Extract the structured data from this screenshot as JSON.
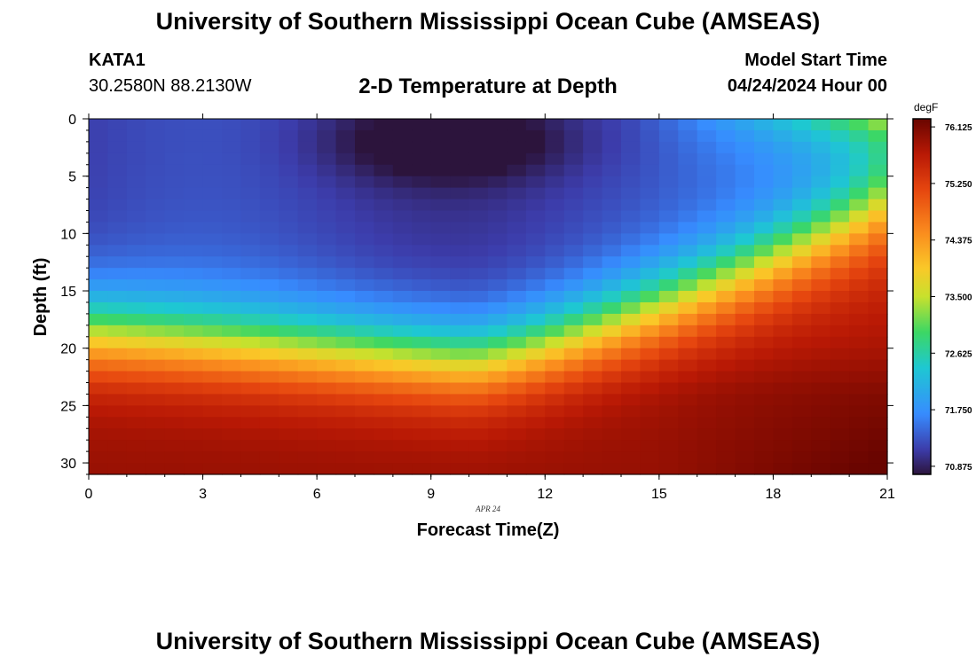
{
  "header": {
    "title": "University of Southern Mississippi Ocean Cube (AMSEAS)",
    "station": "KATA1",
    "coordinates": "30.2580N  88.2130W",
    "subtitle": "2-D Temperature at Depth",
    "model_start_label": "Model Start Time",
    "model_start_date": "04/24/2024 Hour 00"
  },
  "footer": {
    "title": "University of Southern Mississippi Ocean Cube (AMSEAS)"
  },
  "chart_data": {
    "type": "heatmap",
    "title": "2-D Temperature at Depth",
    "xlabel": "Forecast Time(Z)",
    "ylabel": "Depth (ft)",
    "x_ticks": [
      0,
      3,
      6,
      9,
      12,
      15,
      18,
      21
    ],
    "y_ticks": [
      0,
      5,
      10,
      15,
      20,
      25,
      30
    ],
    "xlim": [
      0,
      21
    ],
    "ylim": [
      0,
      31
    ],
    "date_annotation": "APR 24",
    "colorbar": {
      "unit": "degF",
      "min": 70.75,
      "max": 76.25,
      "ticks": [
        "76.125",
        "75.250",
        "74.375",
        "73.500",
        "72.625",
        "71.750",
        "70.875"
      ]
    },
    "field_description": {
      "surface_warm_at_end_degF": 73.5,
      "cold_core_center_hour": 9.5,
      "cold_core_center_depth_ft": 2,
      "cold_core_min_degF": 70.8,
      "thermocline_depth_ft_at_hour_0": 18.5,
      "thermocline_depth_ft_at_hour_10": 21,
      "thermocline_depth_ft_at_hour_21": 7,
      "bottom_max_degF": 76.1
    }
  }
}
